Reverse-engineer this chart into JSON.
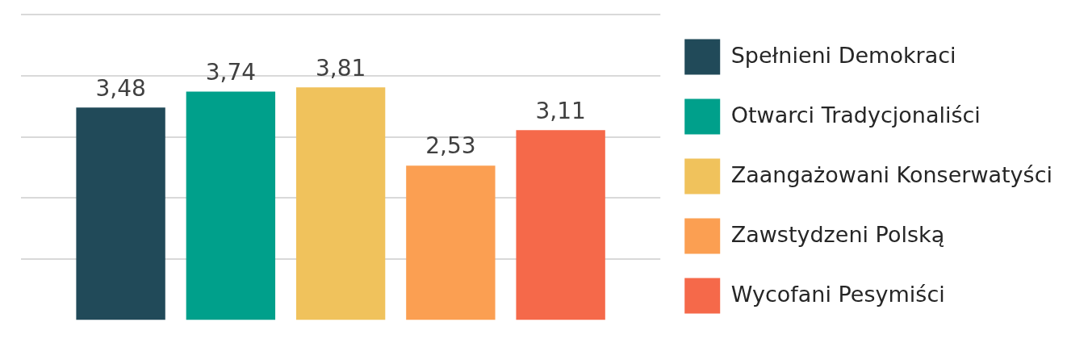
{
  "chart_data": {
    "type": "bar",
    "categories": [
      null
    ],
    "series": [
      {
        "name": "Spełnieni Demokraci",
        "color": "#214a59",
        "values": [
          3.48
        ],
        "value_labels": [
          "3,48"
        ]
      },
      {
        "name": "Otwarci Tradycjonaliści",
        "color": "#00a08b",
        "values": [
          3.74
        ],
        "value_labels": [
          "3,74"
        ]
      },
      {
        "name": "Zaangażowani Konserwatyści",
        "color": "#f0c25c",
        "values": [
          3.81
        ],
        "value_labels": [
          "3,81"
        ]
      },
      {
        "name": "Zawstydzeni Polską",
        "color": "#fb9f52",
        "values": [
          2.53
        ],
        "value_labels": [
          "2,53"
        ]
      },
      {
        "name": "Wycofani Pesymiści",
        "color": "#f5694a",
        "values": [
          3.11
        ],
        "value_labels": [
          "3,11"
        ]
      }
    ],
    "ylim": [
      0,
      5
    ],
    "yticks": [
      {
        "value": 1,
        "label": null
      },
      {
        "value": 2,
        "label": null
      },
      {
        "value": 3,
        "label": null
      },
      {
        "value": 4,
        "label": null
      },
      {
        "value": 5,
        "label": null
      }
    ],
    "grid": "y",
    "legend": "right"
  }
}
